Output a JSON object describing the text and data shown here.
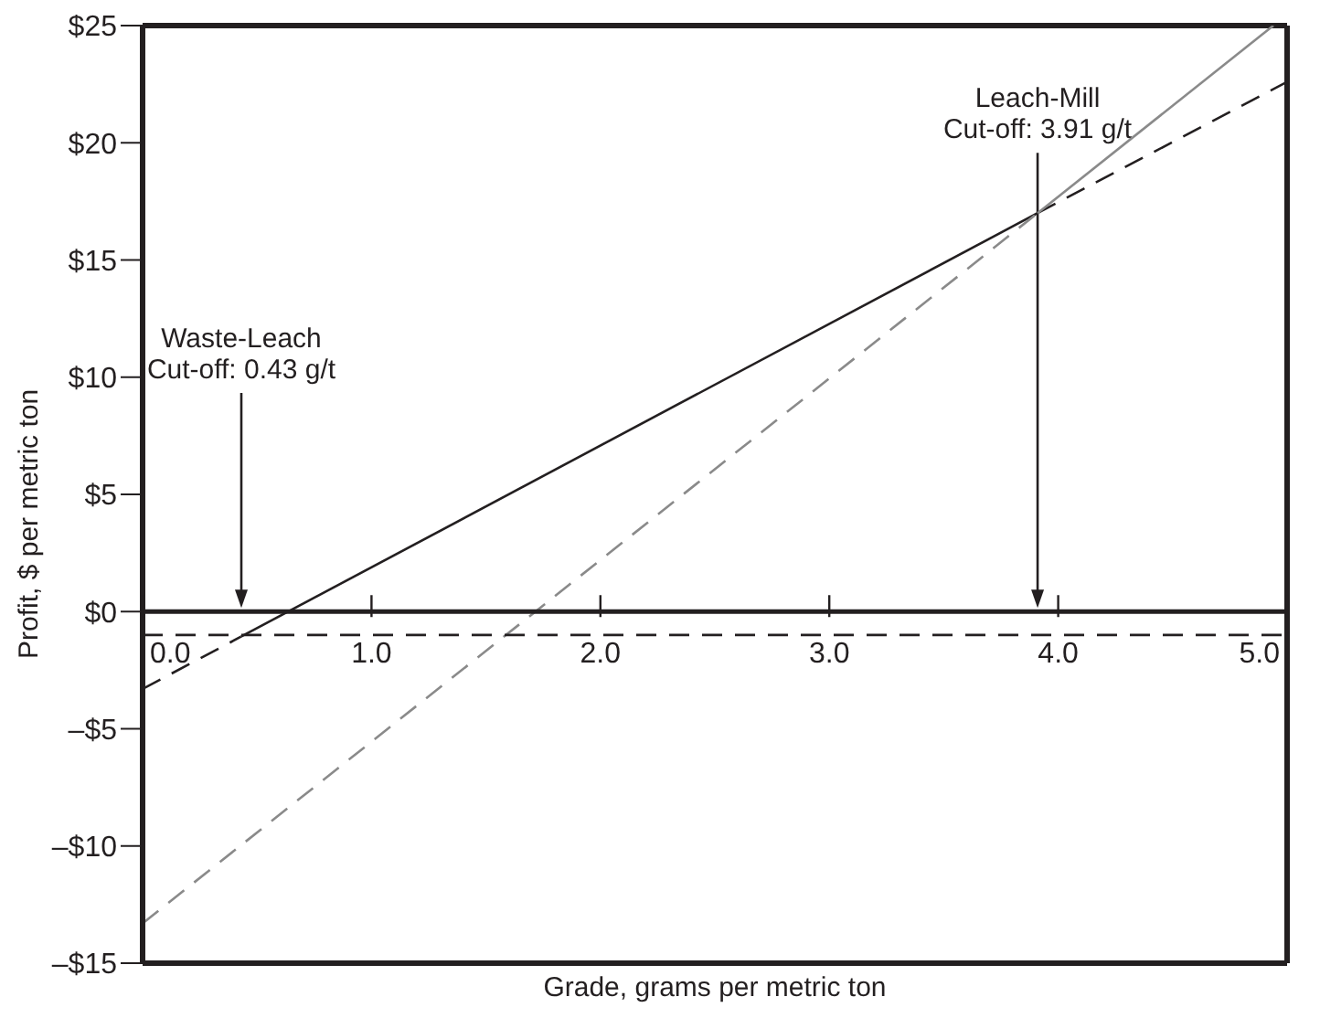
{
  "chart_data": {
    "type": "line",
    "xlabel": "Grade, grams per metric ton",
    "ylabel": "Profit, $ per metric ton",
    "xlim": [
      0,
      5
    ],
    "xticks": [
      {
        "value": 0,
        "label": "0.0"
      },
      {
        "value": 1,
        "label": "1.0"
      },
      {
        "value": 2,
        "label": "2.0"
      },
      {
        "value": 3,
        "label": "3.0"
      },
      {
        "value": 4,
        "label": "4.0"
      },
      {
        "value": 5,
        "label": "5.0"
      }
    ],
    "ylim": [
      -15,
      25
    ],
    "yticks": [
      {
        "value": -15,
        "label": "–$15"
      },
      {
        "value": -10,
        "label": "–$10"
      },
      {
        "value": -5,
        "label": "–$5"
      },
      {
        "value": 0,
        "label": "$0"
      },
      {
        "value": 5,
        "label": "$5"
      },
      {
        "value": 10,
        "label": "$10"
      },
      {
        "value": 15,
        "label": "$15"
      },
      {
        "value": 20,
        "label": "$20"
      },
      {
        "value": 25,
        "label": "$25"
      }
    ],
    "marker": "none",
    "series": [
      {
        "color": "#231f20",
        "line_style": "dashed",
        "x": [
          0,
          0.43
        ],
        "values": [
          -3.3,
          -1.07
        ]
      },
      {
        "color": "#231f20",
        "line_style": "solid",
        "x": [
          0.43,
          3.91
        ],
        "values": [
          -1.07,
          17
        ]
      },
      {
        "color": "#231f20",
        "line_style": "dashed",
        "x": [
          3.91,
          5
        ],
        "values": [
          17,
          22.6
        ]
      },
      {
        "color": "#8a8a8a",
        "line_style": "dashed",
        "x": [
          0,
          3.91
        ],
        "values": [
          -13.3,
          17
        ]
      },
      {
        "color": "#8a8a8a",
        "line_style": "solid",
        "x": [
          3.91,
          4.94
        ],
        "values": [
          17,
          25
        ]
      },
      {
        "color": "#231f20",
        "line_style": "dashed",
        "x": [
          0,
          5
        ],
        "values": [
          -1,
          -1
        ]
      }
    ],
    "ref_lines": [
      {
        "axis": "y",
        "value": 0,
        "color": "#231f20"
      }
    ],
    "annotations": [
      "Waste-Leach\nCut-off: 0.43 g/t",
      {
        "text": "Leach-Mill\nCut-off: 3.91 g/t",
        "x": 3.91,
        "y": 17
      }
    ]
  }
}
